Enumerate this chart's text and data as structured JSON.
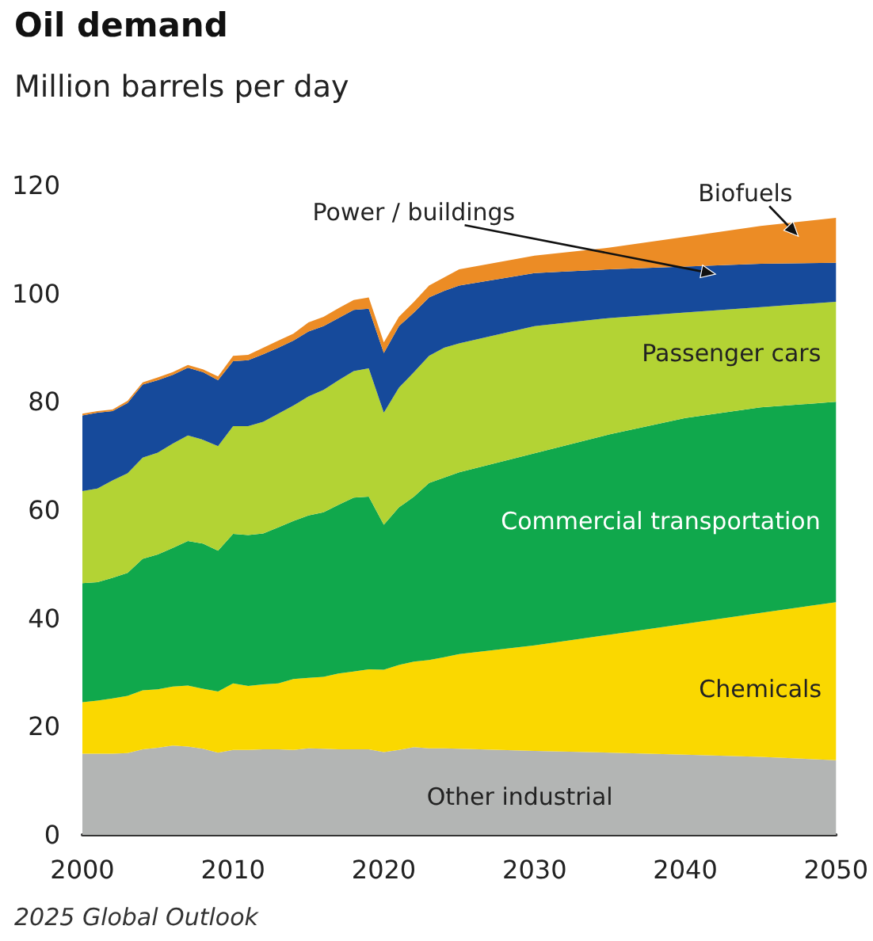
{
  "chart_data": {
    "type": "area",
    "title": "Oil demand",
    "subtitle": "Million barrels per day",
    "annotations": [
      "2025 Global Outlook"
    ],
    "x": [
      2000,
      2001,
      2002,
      2003,
      2004,
      2005,
      2006,
      2007,
      2008,
      2009,
      2010,
      2011,
      2012,
      2013,
      2014,
      2015,
      2016,
      2017,
      2018,
      2019,
      2020,
      2021,
      2022,
      2023,
      2024,
      2025,
      2030,
      2035,
      2040,
      2045,
      2050
    ],
    "stacked": true,
    "marker": "none",
    "grid": false,
    "legend": false,
    "xlim": [
      2000,
      2050
    ],
    "xticks": [
      2000,
      2010,
      2020,
      2030,
      2040,
      2050
    ],
    "ylim": [
      0,
      120
    ],
    "yticks": [
      0,
      20,
      40,
      60,
      80,
      100,
      120
    ],
    "series": [
      {
        "name": "Other industrial",
        "color": "#b3b5b4",
        "values": [
          15,
          15,
          15,
          15.1,
          15.8,
          16.1,
          16.5,
          16.3,
          15.9,
          15.2,
          15.7,
          15.7,
          15.8,
          15.8,
          15.7,
          16,
          15.9,
          15.8,
          15.8,
          15.8,
          15.3,
          15.7,
          16.2,
          16,
          16,
          15.9,
          15.5,
          15.2,
          14.8,
          14.4,
          13.8
        ]
      },
      {
        "name": "Chemicals",
        "color": "#fad800",
        "values": [
          9.5,
          9.8,
          10.2,
          10.6,
          10.9,
          10.8,
          10.9,
          11.3,
          11.1,
          11.3,
          12.3,
          11.8,
          12,
          12.2,
          13.1,
          13,
          13.3,
          14,
          14.4,
          14.8,
          15.2,
          15.7,
          15.8,
          16.3,
          16.8,
          17.5,
          19.5,
          21.8,
          24.2,
          26.6,
          29.2
        ]
      },
      {
        "name": "Commercial transportation",
        "color": "#10a84c",
        "values": [
          22,
          21.9,
          22.3,
          22.7,
          24.3,
          24.9,
          25.6,
          26.7,
          26.8,
          26,
          27.6,
          27.9,
          27.9,
          28.8,
          29.2,
          30,
          30.4,
          31.2,
          32.1,
          31.9,
          26.8,
          29.1,
          30.5,
          32.7,
          33.2,
          33.6,
          35.5,
          37,
          38,
          38,
          37
        ]
      },
      {
        "name": "Passenger cars",
        "color": "#b3d334",
        "values": [
          17,
          17.3,
          18,
          18.4,
          18.7,
          18.8,
          19.3,
          19.5,
          19.2,
          19.3,
          19.9,
          20.1,
          20.6,
          21,
          21.3,
          22,
          22.6,
          23,
          23.4,
          23.7,
          20.7,
          22.1,
          23,
          23.5,
          24,
          23.8,
          23.5,
          21.5,
          19.5,
          18.5,
          18.5
        ]
      },
      {
        "name": "Power / buildings",
        "color": "#164a9b",
        "values": [
          14,
          14,
          12.8,
          13,
          13.5,
          13.4,
          12.7,
          12.5,
          12.5,
          12.2,
          12,
          12.2,
          12.5,
          12.2,
          12,
          12,
          11.8,
          11.5,
          11.3,
          11,
          11,
          11.4,
          11,
          10.8,
          10.5,
          10.7,
          9.8,
          9,
          8.5,
          8,
          7.2
        ]
      },
      {
        "name": "Biofuels",
        "color": "#ec8c25",
        "values": [
          0.3,
          0.3,
          0.3,
          0.4,
          0.4,
          0.5,
          0.5,
          0.5,
          0.5,
          0.7,
          1,
          1,
          1.2,
          1.3,
          1.3,
          1.7,
          1.7,
          1.8,
          1.8,
          2.1,
          2,
          1.7,
          2,
          2.2,
          2.5,
          3,
          3.2,
          4,
          5.5,
          7,
          8.3
        ]
      }
    ]
  }
}
